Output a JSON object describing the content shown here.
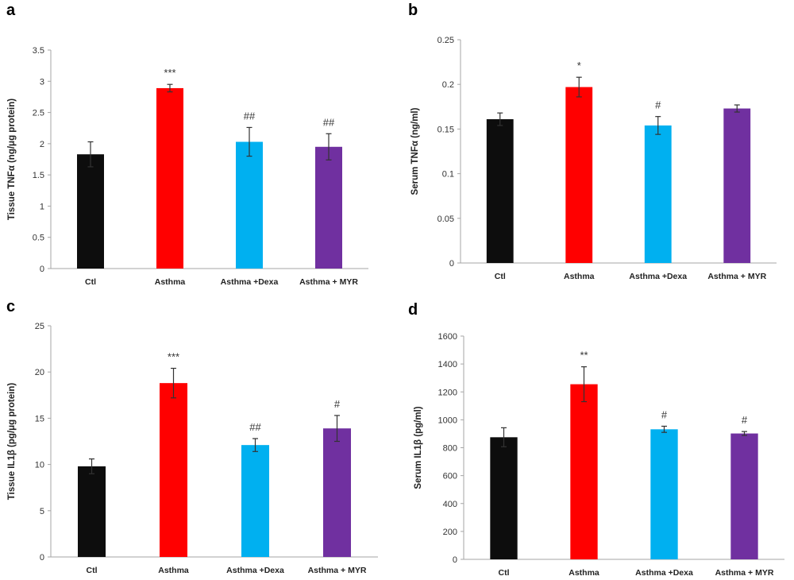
{
  "colors": {
    "Ctl": "#0d0d0d",
    "Asthma": "#ff0000",
    "Asthma +Dexa": "#00b0f0",
    "Asthma + MYR": "#7030a0",
    "axis": "#a6a6a6",
    "errorbar": "#333333"
  },
  "chart_data": [
    {
      "panel": "a",
      "type": "bar",
      "categories": [
        "Ctl",
        "Asthma",
        "Asthma +Dexa",
        "Asthma + MYR"
      ],
      "values": [
        1.83,
        2.89,
        2.03,
        1.95
      ],
      "errors": [
        0.2,
        0.06,
        0.23,
        0.21
      ],
      "significance": [
        "",
        "***",
        "##",
        "##"
      ],
      "ylabel": "Tissue TNFα (ng/μg protein)",
      "ylim": [
        0,
        3.5
      ],
      "yticks": [
        0,
        0.5,
        1,
        1.5,
        2,
        2.5,
        3,
        3.5
      ],
      "ytick_labels": [
        "0",
        "0.5",
        "1",
        "1.5",
        "2",
        "2.5",
        "3",
        "3.5"
      ],
      "grid": false
    },
    {
      "panel": "b",
      "type": "bar",
      "categories": [
        "Ctl",
        "Asthma",
        "Asthma +Dexa",
        "Asthma + MYR"
      ],
      "values": [
        0.161,
        0.197,
        0.154,
        0.173
      ],
      "errors": [
        0.007,
        0.011,
        0.01,
        0.004
      ],
      "significance": [
        "",
        "*",
        "#",
        ""
      ],
      "ylabel": "Serum TNFα (ng/ml)",
      "ylim": [
        0,
        0.25
      ],
      "yticks": [
        0,
        0.05,
        0.1,
        0.15,
        0.2,
        0.25
      ],
      "ytick_labels": [
        "0",
        "0.05",
        "0.1",
        "0.15",
        "0.2",
        "0.25"
      ],
      "grid": false
    },
    {
      "panel": "c",
      "type": "bar",
      "categories": [
        "Ctl",
        "Asthma",
        "Asthma +Dexa",
        "Asthma + MYR"
      ],
      "values": [
        9.8,
        18.8,
        12.1,
        13.9
      ],
      "errors": [
        0.8,
        1.6,
        0.7,
        1.4
      ],
      "significance": [
        "",
        "***",
        "##",
        "#"
      ],
      "ylabel": "Tissue IL1β (pg/μg protein)",
      "ylim": [
        0,
        25
      ],
      "yticks": [
        0,
        5,
        10,
        15,
        20,
        25
      ],
      "ytick_labels": [
        "0",
        "5",
        "10",
        "15",
        "20",
        "25"
      ],
      "grid": false
    },
    {
      "panel": "d",
      "type": "bar",
      "categories": [
        "Ctl",
        "Asthma",
        "Asthma +Dexa",
        "Asthma + MYR"
      ],
      "values": [
        875,
        1255,
        932,
        902
      ],
      "errors": [
        68,
        125,
        22,
        14
      ],
      "significance": [
        "",
        "**",
        "#",
        "#"
      ],
      "ylabel": "Serum IL1β (pg/ml)",
      "ylim": [
        0,
        1600
      ],
      "yticks": [
        0,
        200,
        400,
        600,
        800,
        1000,
        1200,
        1400,
        1600
      ],
      "ytick_labels": [
        "0",
        "200",
        "400",
        "600",
        "800",
        "1000",
        "1200",
        "1400",
        "1600"
      ],
      "grid": false
    }
  ]
}
